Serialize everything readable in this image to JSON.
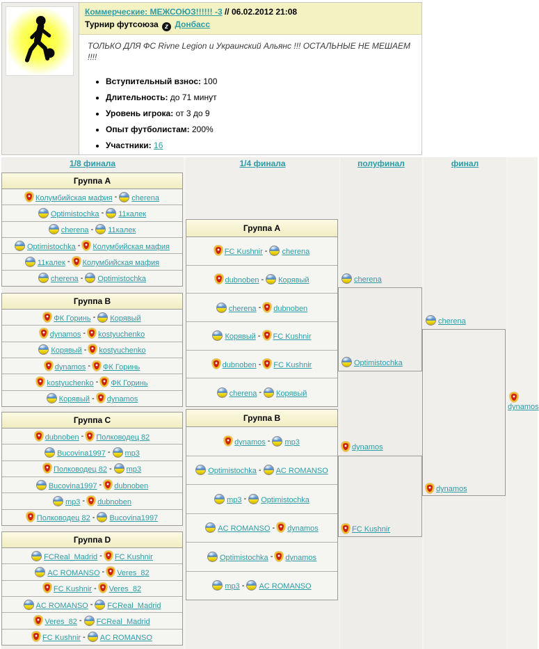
{
  "colors": {
    "link": "#2e9ca6",
    "banner_bg": "#f4f1c3",
    "group_header_bg": "#f7f4cf",
    "crest_red": "#cc2211",
    "flag_blue": "#4a86c8",
    "flag_yellow": "#e8cf00"
  },
  "header": {
    "title_link": "Коммерческие: МЕЖСОЮЗ!!!!!! -3",
    "title_separator": "//",
    "datetime": "06.02.2012 21:08",
    "subtitle": "Турнир футсоюза",
    "union_link": "Донбасс",
    "description": "ТОЛЬКО ДЛЯ ФС Rivne Legion и Украинский Альянс !!! ОСТАЛЬНЫЕ НЕ МЕШАЕМ !!!!",
    "details": [
      {
        "label": "Вступительный взнос:",
        "value": "100",
        "link": false
      },
      {
        "label": "Длительность:",
        "value": "до 71 минут",
        "link": false
      },
      {
        "label": "Уровень игрока:",
        "value": "от 3 до 9",
        "link": false
      },
      {
        "label": "Опыт футболистам:",
        "value": "200%",
        "link": false
      },
      {
        "label": "Участники:",
        "value": "16",
        "link": true
      }
    ]
  },
  "bracket": {
    "match_separator": "-",
    "round_headers": [
      "1/8 финала",
      "1/4 финала",
      "полуфинал",
      "финал"
    ],
    "groups_r16": [
      {
        "title": "Группа A",
        "matches": [
          {
            "home": {
              "name": "Колумбийская мафия",
              "icon": "red-crest"
            },
            "away": {
              "name": "cherena",
              "icon": "ua-ball"
            }
          },
          {
            "home": {
              "name": "Optimistochka",
              "icon": "ua-ball"
            },
            "away": {
              "name": "11калек",
              "icon": "ua-ball"
            }
          },
          {
            "home": {
              "name": "cherena",
              "icon": "ua-ball"
            },
            "away": {
              "name": "11калек",
              "icon": "ua-ball"
            }
          },
          {
            "home": {
              "name": "Optimistochka",
              "icon": "ua-ball"
            },
            "away": {
              "name": "Колумбийская мафия",
              "icon": "red-crest"
            }
          },
          {
            "home": {
              "name": "11калек",
              "icon": "ua-ball"
            },
            "away": {
              "name": "Колумбийская мафия",
              "icon": "red-crest"
            }
          },
          {
            "home": {
              "name": "cherena",
              "icon": "ua-ball"
            },
            "away": {
              "name": "Optimistochka",
              "icon": "ua-ball"
            }
          }
        ]
      },
      {
        "title": "Группа B",
        "matches": [
          {
            "home": {
              "name": "ФК Горинь",
              "icon": "red-crest"
            },
            "away": {
              "name": "Корявый",
              "icon": "ua-ball"
            }
          },
          {
            "home": {
              "name": "dynamos",
              "icon": "red-crest"
            },
            "away": {
              "name": "kostyuchenko",
              "icon": "red-crest"
            }
          },
          {
            "home": {
              "name": "Корявый",
              "icon": "ua-ball"
            },
            "away": {
              "name": "kostyuchenko",
              "icon": "red-crest"
            }
          },
          {
            "home": {
              "name": "dynamos",
              "icon": "red-crest"
            },
            "away": {
              "name": "ФК Горинь",
              "icon": "red-crest"
            }
          },
          {
            "home": {
              "name": "kostyuchenko",
              "icon": "red-crest"
            },
            "away": {
              "name": "ФК Горинь",
              "icon": "red-crest"
            }
          },
          {
            "home": {
              "name": "Корявый",
              "icon": "ua-ball"
            },
            "away": {
              "name": "dynamos",
              "icon": "red-crest"
            }
          }
        ]
      },
      {
        "title": "Группа C",
        "matches": [
          {
            "home": {
              "name": "dubnoben",
              "icon": "red-crest"
            },
            "away": {
              "name": "Полководец 82",
              "icon": "red-crest"
            }
          },
          {
            "home": {
              "name": "Bucovina1997",
              "icon": "ua-ball"
            },
            "away": {
              "name": "mp3",
              "icon": "ua-ball"
            }
          },
          {
            "home": {
              "name": "Полководец 82",
              "icon": "red-crest"
            },
            "away": {
              "name": "mp3",
              "icon": "ua-ball"
            }
          },
          {
            "home": {
              "name": "Bucovina1997",
              "icon": "ua-ball"
            },
            "away": {
              "name": "dubnoben",
              "icon": "red-crest"
            }
          },
          {
            "home": {
              "name": "mp3",
              "icon": "ua-ball"
            },
            "away": {
              "name": "dubnoben",
              "icon": "red-crest"
            }
          },
          {
            "home": {
              "name": "Полководец 82",
              "icon": "red-crest"
            },
            "away": {
              "name": "Bucovina1997",
              "icon": "ua-ball"
            }
          }
        ]
      },
      {
        "title": "Группа D",
        "matches": [
          {
            "home": {
              "name": "FCReal_Madrid",
              "icon": "ua-ball"
            },
            "away": {
              "name": "FC Kushnir",
              "icon": "red-crest"
            }
          },
          {
            "home": {
              "name": "AC ROMANSO",
              "icon": "ua-ball"
            },
            "away": {
              "name": "Veres_82",
              "icon": "red-crest"
            }
          },
          {
            "home": {
              "name": "FC Kushnir",
              "icon": "red-crest"
            },
            "away": {
              "name": "Veres_82",
              "icon": "red-crest"
            }
          },
          {
            "home": {
              "name": "AC ROMANSO",
              "icon": "ua-ball"
            },
            "away": {
              "name": "FCReal_Madrid",
              "icon": "ua-ball"
            }
          },
          {
            "home": {
              "name": "Veres_82",
              "icon": "red-crest"
            },
            "away": {
              "name": "FCReal_Madrid",
              "icon": "ua-ball"
            }
          },
          {
            "home": {
              "name": "FC Kushnir",
              "icon": "red-crest"
            },
            "away": {
              "name": "AC ROMANSO",
              "icon": "ua-ball"
            }
          }
        ]
      }
    ],
    "groups_qf": [
      {
        "title": "Группа A",
        "matches": [
          {
            "home": {
              "name": "FC Kushnir",
              "icon": "red-crest"
            },
            "away": {
              "name": "cherena",
              "icon": "ua-ball"
            }
          },
          {
            "home": {
              "name": "dubnoben",
              "icon": "red-crest"
            },
            "away": {
              "name": "Корявый",
              "icon": "ua-ball"
            }
          },
          {
            "home": {
              "name": "cherena",
              "icon": "ua-ball"
            },
            "away": {
              "name": "dubnoben",
              "icon": "red-crest"
            }
          },
          {
            "home": {
              "name": "Корявый",
              "icon": "ua-ball"
            },
            "away": {
              "name": "FC Kushnir",
              "icon": "red-crest"
            }
          },
          {
            "home": {
              "name": "dubnoben",
              "icon": "red-crest"
            },
            "away": {
              "name": "FC Kushnir",
              "icon": "red-crest"
            }
          },
          {
            "home": {
              "name": "cherena",
              "icon": "ua-ball"
            },
            "away": {
              "name": "Корявый",
              "icon": "ua-ball"
            }
          }
        ]
      },
      {
        "title": "Группа B",
        "matches": [
          {
            "home": {
              "name": "dynamos",
              "icon": "red-crest"
            },
            "away": {
              "name": "mp3",
              "icon": "ua-ball"
            }
          },
          {
            "home": {
              "name": "Optimistochka",
              "icon": "ua-ball"
            },
            "away": {
              "name": "AC ROMANSO",
              "icon": "ua-ball"
            }
          },
          {
            "home": {
              "name": "mp3",
              "icon": "ua-ball"
            },
            "away": {
              "name": "Optimistochka",
              "icon": "ua-ball"
            }
          },
          {
            "home": {
              "name": "AC ROMANSO",
              "icon": "ua-ball"
            },
            "away": {
              "name": "dynamos",
              "icon": "red-crest"
            }
          },
          {
            "home": {
              "name": "Optimistochka",
              "icon": "ua-ball"
            },
            "away": {
              "name": "dynamos",
              "icon": "red-crest"
            }
          },
          {
            "home": {
              "name": "mp3",
              "icon": "ua-ball"
            },
            "away": {
              "name": "AC ROMANSO",
              "icon": "ua-ball"
            }
          }
        ]
      }
    ],
    "semifinal": [
      {
        "name": "cherena",
        "icon": "ua-ball"
      },
      {
        "name": "Optimistochka",
        "icon": "ua-ball"
      },
      {
        "name": "dynamos",
        "icon": "red-crest"
      },
      {
        "name": "FC Kushnir",
        "icon": "red-crest"
      }
    ],
    "final": [
      {
        "name": "cherena",
        "icon": "ua-ball"
      },
      {
        "name": "dynamos",
        "icon": "red-crest"
      }
    ],
    "winner": {
      "name": "dynamos",
      "icon": "red-crest"
    }
  }
}
